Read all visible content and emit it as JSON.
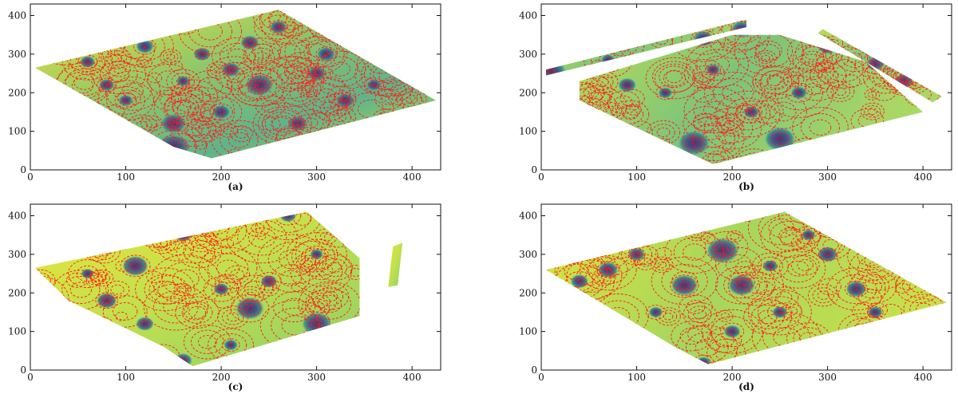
{
  "chart_data": [
    {
      "type": "heatmap",
      "panel": "(a)",
      "xlim": [
        0,
        430
      ],
      "ylim": [
        0,
        430
      ],
      "xticks": [
        0,
        100,
        200,
        300,
        400
      ],
      "yticks": [
        0,
        100,
        200,
        300,
        400
      ],
      "coverage": [
        [
          5,
          265
        ],
        [
          260,
          415
        ],
        [
          425,
          180
        ],
        [
          190,
          30
        ],
        [
          150,
          60
        ]
      ],
      "sources": [
        [
          150,
          120
        ],
        [
          150,
          60
        ],
        [
          240,
          220
        ],
        [
          100,
          180
        ],
        [
          210,
          260
        ],
        [
          180,
          300
        ],
        [
          60,
          280
        ],
        [
          300,
          250
        ],
        [
          330,
          180
        ],
        [
          260,
          370
        ],
        [
          200,
          150
        ],
        [
          120,
          320
        ],
        [
          280,
          120
        ],
        [
          360,
          220
        ],
        [
          80,
          220
        ],
        [
          230,
          330
        ],
        [
          310,
          300
        ],
        [
          160,
          230
        ]
      ],
      "ring_density": "high"
    },
    {
      "type": "heatmap",
      "panel": "(b)",
      "xlim": [
        0,
        430
      ],
      "ylim": [
        0,
        430
      ],
      "xticks": [
        0,
        100,
        200,
        300,
        400
      ],
      "yticks": [
        0,
        100,
        200,
        300,
        400
      ],
      "coverage": [
        [
          40,
          230
        ],
        [
          200,
          350
        ],
        [
          250,
          350
        ],
        [
          340,
          280
        ],
        [
          400,
          150
        ],
        [
          180,
          15
        ],
        [
          150,
          50
        ],
        [
          40,
          180
        ]
      ],
      "strips": [
        [
          [
            5,
            260
          ],
          [
            215,
            390
          ],
          [
            215,
            370
          ],
          [
            5,
            245
          ]
        ],
        [
          [
            295,
            365
          ],
          [
            420,
            190
          ],
          [
            410,
            175
          ],
          [
            290,
            355
          ]
        ]
      ],
      "sources": [
        [
          160,
          70
        ],
        [
          250,
          80
        ],
        [
          10,
          255
        ],
        [
          70,
          285
        ],
        [
          170,
          340
        ],
        [
          210,
          365
        ],
        [
          350,
          275
        ],
        [
          380,
          230
        ],
        [
          180,
          260
        ],
        [
          300,
          320
        ],
        [
          130,
          200
        ],
        [
          220,
          150
        ],
        [
          90,
          220
        ],
        [
          270,
          200
        ]
      ],
      "ring_density": "medium"
    },
    {
      "type": "heatmap",
      "panel": "(c)",
      "xlim": [
        0,
        430
      ],
      "ylim": [
        0,
        430
      ],
      "xticks": [
        0,
        100,
        200,
        300,
        400
      ],
      "yticks": [
        0,
        100,
        200,
        300,
        400
      ],
      "coverage": [
        [
          5,
          265
        ],
        [
          270,
          400
        ],
        [
          290,
          410
        ],
        [
          345,
          290
        ],
        [
          345,
          140
        ],
        [
          170,
          10
        ],
        [
          140,
          60
        ],
        [
          40,
          180
        ]
      ],
      "strips": [
        [
          [
            380,
            320
          ],
          [
            390,
            330
          ],
          [
            385,
            220
          ],
          [
            375,
            215
          ]
        ]
      ],
      "sources": [
        [
          110,
          270
        ],
        [
          300,
          120
        ],
        [
          230,
          160
        ],
        [
          80,
          180
        ],
        [
          210,
          65
        ],
        [
          160,
          25
        ],
        [
          200,
          210
        ],
        [
          160,
          350
        ],
        [
          250,
          230
        ],
        [
          60,
          250
        ],
        [
          120,
          120
        ],
        [
          300,
          300
        ],
        [
          270,
          400
        ]
      ],
      "ring_density": "medium"
    },
    {
      "type": "heatmap",
      "panel": "(d)",
      "xlim": [
        0,
        430
      ],
      "ylim": [
        0,
        430
      ],
      "xticks": [
        0,
        100,
        200,
        300,
        400
      ],
      "yticks": [
        0,
        100,
        200,
        300,
        400
      ],
      "coverage": [
        [
          5,
          260
        ],
        [
          255,
          410
        ],
        [
          425,
          175
        ],
        [
          175,
          15
        ],
        [
          140,
          60
        ]
      ],
      "sources": [
        [
          190,
          310
        ],
        [
          210,
          220
        ],
        [
          150,
          220
        ],
        [
          70,
          260
        ],
        [
          300,
          300
        ],
        [
          330,
          210
        ],
        [
          250,
          150
        ],
        [
          120,
          150
        ],
        [
          100,
          300
        ],
        [
          280,
          350
        ],
        [
          350,
          150
        ],
        [
          40,
          230
        ],
        [
          200,
          100
        ],
        [
          170,
          20
        ],
        [
          240,
          270
        ]
      ],
      "ring_density": "medium"
    }
  ],
  "captions": [
    "(a)",
    "(b)",
    "(c)",
    "(d)"
  ],
  "colors": {
    "ring": "#ff1a1a",
    "low": "#f4ea2a",
    "mid": "#7cc47a",
    "high": "#2e6f8e",
    "peak": "#6b1f5c"
  }
}
